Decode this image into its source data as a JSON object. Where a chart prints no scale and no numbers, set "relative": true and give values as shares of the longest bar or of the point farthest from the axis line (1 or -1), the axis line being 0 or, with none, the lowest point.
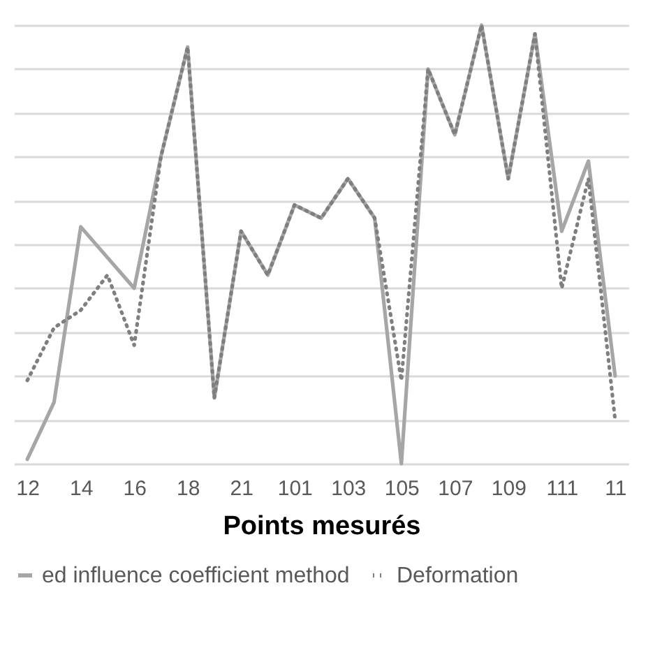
{
  "chart_data": {
    "type": "line",
    "relative": true,
    "xlabel": "Points mesurés",
    "grid": "y",
    "legend": "bottom",
    "marker": "none",
    "categories": [
      "12",
      null,
      "14",
      null,
      "16",
      null,
      "18",
      null,
      "21",
      null,
      "101",
      null,
      "103",
      null,
      "105",
      null,
      "107",
      null,
      "109",
      null,
      "111",
      null,
      "11"
    ],
    "series": [
      {
        "name": "ed influence coefficient method",
        "color": "#a6a6a6",
        "line_style": "solid",
        "values": [
          0.01,
          0.14,
          0.54,
          0.47,
          0.4,
          0.7,
          0.95,
          0.15,
          0.53,
          0.43,
          0.59,
          0.56,
          0.65,
          0.56,
          0,
          0.9,
          0.75,
          1,
          0.65,
          0.98,
          0.53,
          0.69,
          0.2
        ]
      },
      {
        "name": "Deformation",
        "color": "#7f7f7f",
        "line_style": "dotted",
        "values": [
          0.19,
          0.31,
          0.35,
          0.43,
          0.27,
          0.7,
          0.95,
          0.15,
          0.53,
          0.43,
          0.59,
          0.56,
          0.65,
          0.56,
          0.19,
          0.9,
          0.75,
          1,
          0.65,
          0.98,
          0.4,
          0.65,
          0.1
        ]
      }
    ]
  }
}
